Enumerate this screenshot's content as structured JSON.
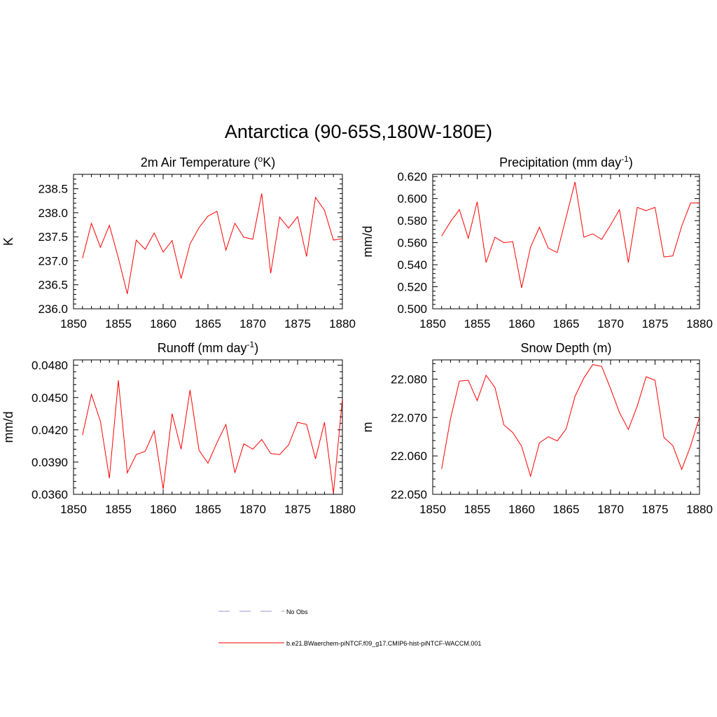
{
  "title": "Antarctica (90-65S,180W-180E)",
  "line_color": "#ff0000",
  "obs_color": "#aaaadd",
  "legend": {
    "obs_label": "No Obs",
    "model_label": "b.e21.BWaerchem-piNTCF.f09_g17.CMIP6-hist-piNTCF-WACCM.001"
  },
  "chart_data": [
    {
      "type": "line",
      "title": "2m Air Temperature (",
      "title_sup": "o",
      "title_end": "K)",
      "ylabel": "K",
      "xlim": [
        1850,
        1880
      ],
      "ylim": [
        236.0,
        238.8
      ],
      "xticks": [
        1850,
        1855,
        1860,
        1865,
        1870,
        1875,
        1880
      ],
      "yticks": [
        "236.0",
        "236.5",
        "237.0",
        "237.5",
        "238.0",
        "238.5"
      ],
      "grid": false,
      "series": [
        {
          "x": [
            1851,
            1852,
            1853,
            1854,
            1855,
            1856,
            1857,
            1858,
            1859,
            1860,
            1861,
            1862,
            1863,
            1864,
            1865,
            1866,
            1867,
            1868,
            1869,
            1870,
            1871,
            1872,
            1873,
            1874,
            1875,
            1876,
            1877,
            1878,
            1879,
            1880
          ],
          "values": [
            237.05,
            237.78,
            237.28,
            237.74,
            237.06,
            236.31,
            237.43,
            237.24,
            237.58,
            237.18,
            237.42,
            236.63,
            237.35,
            237.69,
            237.93,
            238.03,
            237.22,
            237.78,
            237.49,
            237.45,
            238.4,
            236.74,
            237.91,
            237.68,
            237.92,
            237.09,
            238.32,
            238.05,
            237.43,
            237.46
          ]
        }
      ]
    },
    {
      "type": "line",
      "title": "Precipitation (mm day",
      "title_sup": "-1",
      "title_end": ")",
      "ylabel": "mm/d",
      "xlim": [
        1850,
        1880
      ],
      "ylim": [
        0.5,
        0.622
      ],
      "xticks": [
        1850,
        1855,
        1860,
        1865,
        1870,
        1875,
        1880
      ],
      "yticks": [
        "0.500",
        "0.520",
        "0.540",
        "0.560",
        "0.580",
        "0.600",
        "0.620"
      ],
      "grid": false,
      "series": [
        {
          "x": [
            1851,
            1852,
            1853,
            1854,
            1855,
            1856,
            1857,
            1858,
            1859,
            1860,
            1861,
            1862,
            1863,
            1864,
            1865,
            1866,
            1867,
            1868,
            1869,
            1870,
            1871,
            1872,
            1873,
            1874,
            1875,
            1876,
            1877,
            1878,
            1879,
            1880
          ],
          "values": [
            0.566,
            0.579,
            0.59,
            0.564,
            0.597,
            0.542,
            0.565,
            0.56,
            0.561,
            0.519,
            0.556,
            0.574,
            0.555,
            0.551,
            0.583,
            0.615,
            0.565,
            0.568,
            0.563,
            0.576,
            0.59,
            0.542,
            0.592,
            0.589,
            0.592,
            0.547,
            0.548,
            0.575,
            0.596,
            0.596
          ]
        }
      ]
    },
    {
      "type": "line",
      "title": "Runoff (mm day",
      "title_sup": "-1",
      "title_end": ")",
      "ylabel": "mm/d",
      "xlim": [
        1850,
        1880
      ],
      "ylim": [
        0.036,
        0.0485
      ],
      "xticks": [
        1850,
        1855,
        1860,
        1865,
        1870,
        1875,
        1880
      ],
      "yticks": [
        "0.0360",
        "0.0390",
        "0.0420",
        "0.0450",
        "0.0480"
      ],
      "grid": false,
      "series": [
        {
          "x": [
            1851,
            1852,
            1853,
            1854,
            1855,
            1856,
            1857,
            1858,
            1859,
            1860,
            1861,
            1862,
            1863,
            1864,
            1865,
            1866,
            1867,
            1868,
            1869,
            1870,
            1871,
            1872,
            1873,
            1874,
            1875,
            1876,
            1877,
            1878,
            1879,
            1880
          ],
          "values": [
            0.0415,
            0.0453,
            0.0428,
            0.0375,
            0.0466,
            0.038,
            0.0397,
            0.04,
            0.0419,
            0.0365,
            0.0435,
            0.0402,
            0.0457,
            0.0401,
            0.0389,
            0.0408,
            0.0425,
            0.038,
            0.0407,
            0.0402,
            0.0411,
            0.0398,
            0.0397,
            0.0406,
            0.0427,
            0.0425,
            0.0393,
            0.0427,
            0.0361,
            0.0449
          ]
        }
      ]
    },
    {
      "type": "line",
      "title": "Snow Depth (m)",
      "title_sup": "",
      "title_end": "",
      "ylabel": "m",
      "xlim": [
        1850,
        1880
      ],
      "ylim": [
        22.05,
        22.085
      ],
      "xticks": [
        1850,
        1855,
        1860,
        1865,
        1870,
        1875,
        1880
      ],
      "yticks": [
        "22.050",
        "22.060",
        "22.070",
        "22.080"
      ],
      "grid": false,
      "series": [
        {
          "x": [
            1851,
            1852,
            1853,
            1854,
            1855,
            1856,
            1857,
            1858,
            1859,
            1860,
            1861,
            1862,
            1863,
            1864,
            1865,
            1866,
            1867,
            1868,
            1869,
            1870,
            1871,
            1872,
            1873,
            1874,
            1875,
            1876,
            1877,
            1878,
            1879,
            1880
          ],
          "values": [
            22.0566,
            22.0697,
            22.0795,
            22.0797,
            22.0744,
            22.081,
            22.0778,
            22.0681,
            22.0661,
            22.0625,
            22.0547,
            22.0634,
            22.065,
            22.0639,
            22.067,
            22.0755,
            22.0803,
            22.0838,
            22.0833,
            22.0775,
            22.0713,
            22.0669,
            22.073,
            22.0806,
            22.0797,
            22.0648,
            22.0627,
            22.0565,
            22.0626,
            22.0701
          ]
        }
      ]
    }
  ]
}
